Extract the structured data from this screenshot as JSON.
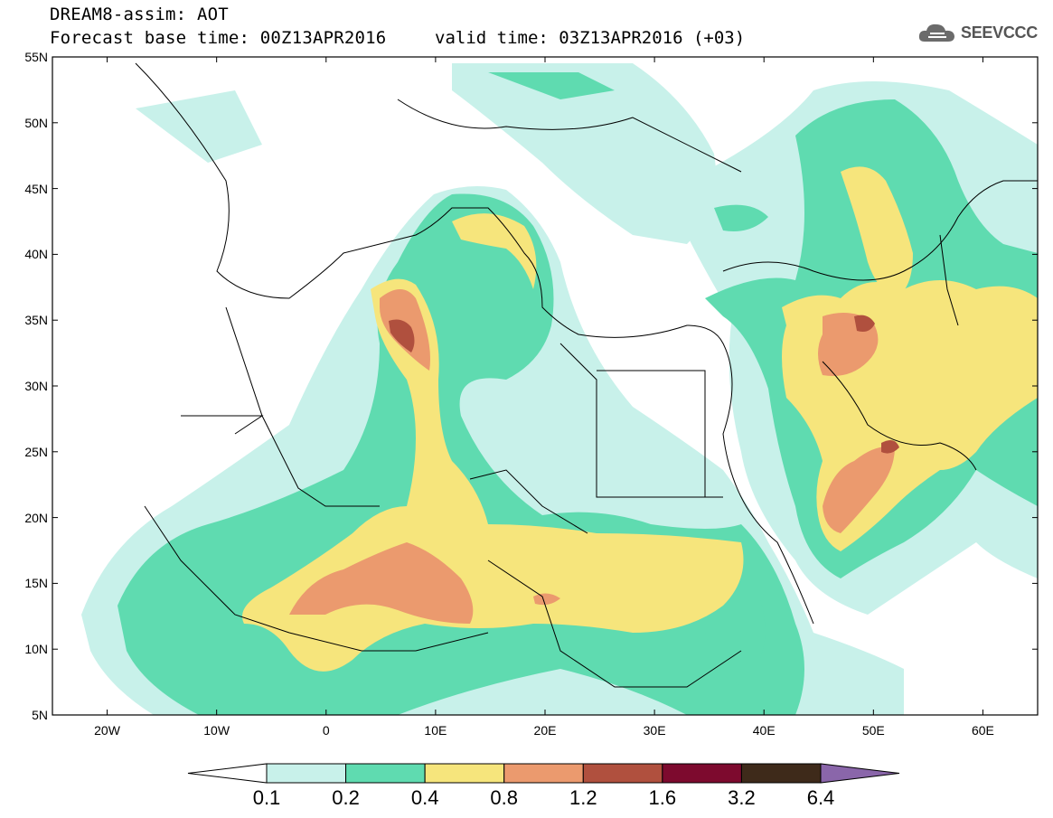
{
  "header": {
    "line1": "DREAM8-assim: AOT",
    "line2": "Forecast base time: 00Z13APR2016",
    "line3": "valid time: 03Z13APR2016 (+03)"
  },
  "logo": {
    "icon": "cloud-logo-icon",
    "text": "SEEVCCC"
  },
  "map": {
    "lat_labels": [
      "55N",
      "50N",
      "45N",
      "40N",
      "35N",
      "30N",
      "25N",
      "20N",
      "15N",
      "10N",
      "5N"
    ],
    "lon_labels": [
      "20W",
      "10W",
      "0",
      "10E",
      "20E",
      "30E",
      "40E",
      "50E",
      "60E"
    ],
    "lon_range": [
      -25,
      65
    ],
    "lat_range": [
      5,
      55
    ],
    "variable": "AOT"
  },
  "colorbar": {
    "labels": [
      "0.1",
      "0.2",
      "0.4",
      "0.8",
      "1.2",
      "1.6",
      "3.2",
      "6.4"
    ],
    "colors": [
      "#c8f1ea",
      "#5fdbb0",
      "#f6e57c",
      "#eb9a6e",
      "#b0503e",
      "#7d0a2e",
      "#3e2a1a"
    ],
    "below_color": "#ffffff",
    "above_color": "#8a66aa"
  }
}
